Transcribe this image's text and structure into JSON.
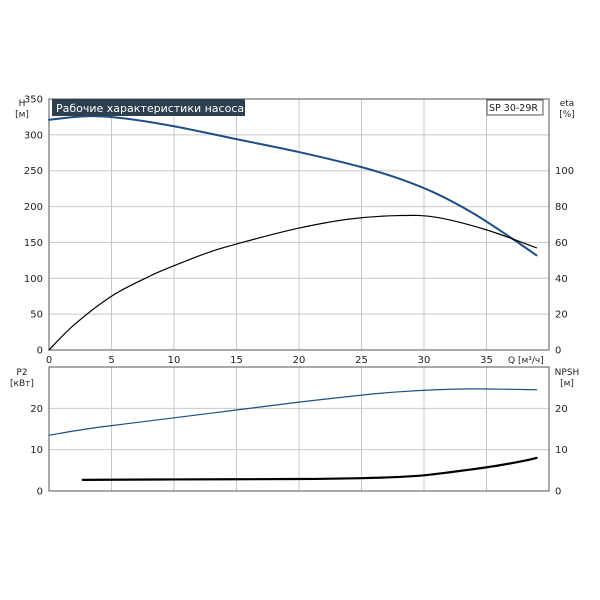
{
  "title": "Рабочие характеристики насоса",
  "model": "SP 30-29R",
  "colors": {
    "head": "#1f4e85",
    "eta": "#000000",
    "p2": "#1f4e85",
    "npsh": "#000000",
    "title_bg": "#2e3f50",
    "grid": "#c8c8c8"
  },
  "chart_data": [
    {
      "type": "line",
      "name": "head-efficiency",
      "xlabel": "Q [м³/ч]",
      "ylabel": "H\n[м]",
      "y2label": "eta\n[%]",
      "xlim": [
        0,
        40
      ],
      "ylim": [
        0,
        350
      ],
      "y2lim": [
        0,
        140
      ],
      "xticks": [
        0,
        5,
        10,
        15,
        20,
        25,
        30,
        35
      ],
      "yticks": [
        0,
        50,
        100,
        150,
        200,
        250,
        300,
        350
      ],
      "y2ticks": [
        0,
        20,
        40,
        60,
        80,
        100
      ],
      "series": [
        {
          "key": "head",
          "axis": "left",
          "x": [
            0,
            3,
            6,
            10,
            15,
            20,
            25,
            28,
            31,
            34,
            37,
            39
          ],
          "y": [
            321,
            326,
            323,
            312,
            294,
            276,
            255,
            239,
            218,
            190,
            156,
            132
          ]
        },
        {
          "key": "eta",
          "axis": "right",
          "x": [
            0,
            2,
            5,
            8,
            10,
            13,
            16,
            20,
            24,
            28,
            31,
            35,
            39
          ],
          "y": [
            0,
            14,
            30,
            41,
            47,
            55,
            61,
            68,
            73,
            75,
            74,
            67,
            57
          ]
        }
      ]
    },
    {
      "type": "line",
      "name": "power-npsh",
      "ylabel": "P2\n[кВт]",
      "y2label": "NPSH\n[м]",
      "xlim": [
        0,
        40
      ],
      "ylim": [
        0,
        30
      ],
      "y2lim": [
        0,
        30
      ],
      "yticks": [
        0,
        10,
        20
      ],
      "y2ticks": [
        0,
        10,
        20
      ],
      "series": [
        {
          "key": "p2",
          "axis": "left",
          "x": [
            0,
            3,
            6,
            10,
            15,
            20,
            25,
            28,
            31,
            34,
            37,
            39
          ],
          "y": [
            13.5,
            15,
            16.2,
            17.7,
            19.6,
            21.5,
            23.2,
            24,
            24.5,
            24.7,
            24.6,
            24.5
          ]
        },
        {
          "key": "npsh",
          "axis": "right",
          "x": [
            2.7,
            10,
            20,
            25,
            28,
            30,
            32,
            34,
            36,
            38,
            39
          ],
          "y": [
            2.7,
            2.8,
            2.9,
            3.1,
            3.4,
            3.8,
            4.5,
            5.3,
            6.2,
            7.3,
            8
          ]
        }
      ]
    }
  ]
}
